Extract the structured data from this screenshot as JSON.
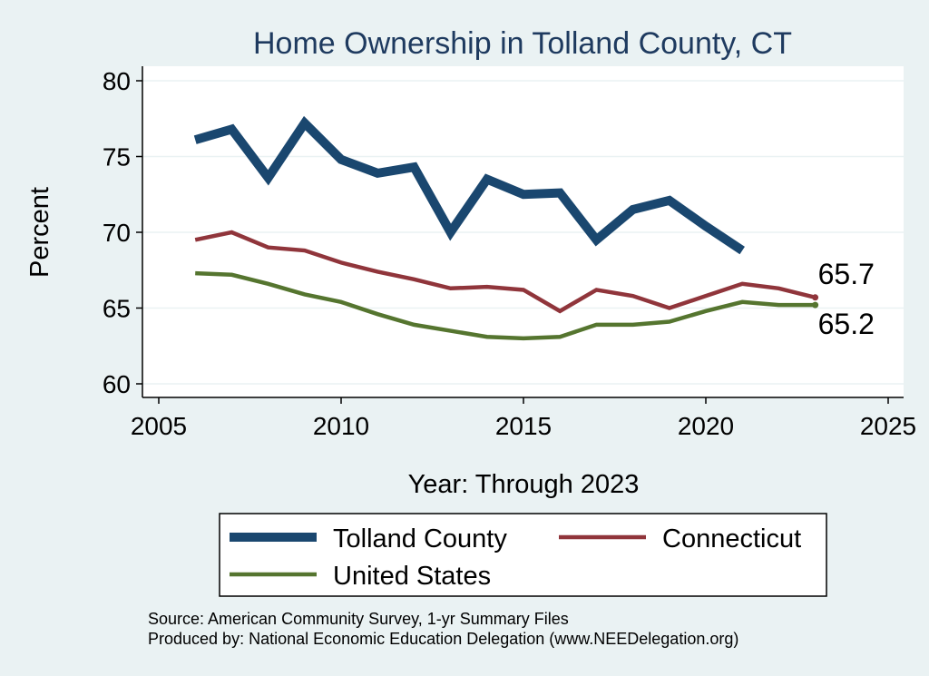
{
  "chart_data": {
    "type": "line",
    "title": "Home Ownership in Tolland County, CT",
    "xlabel": "Year: Through 2023",
    "ylabel": "Percent",
    "xlim": [
      2005,
      2025
    ],
    "ylim": [
      60,
      80
    ],
    "xticks": [
      2005,
      2010,
      2015,
      2020,
      2025
    ],
    "yticks": [
      60,
      65,
      70,
      75,
      80
    ],
    "series": [
      {
        "name": "Tolland County",
        "color": "#1a476f",
        "x": [
          2006,
          2007,
          2008,
          2009,
          2010,
          2011,
          2012,
          2013,
          2014,
          2015,
          2016,
          2017,
          2018,
          2019,
          2020,
          2021
        ],
        "values": [
          76.1,
          76.8,
          73.6,
          77.2,
          74.8,
          73.9,
          74.3,
          70.0,
          73.5,
          72.5,
          72.6,
          69.5,
          71.5,
          72.1,
          70.4,
          68.8
        ]
      },
      {
        "name": "Connecticut",
        "color": "#90353b",
        "x": [
          2006,
          2007,
          2008,
          2009,
          2010,
          2011,
          2012,
          2013,
          2014,
          2015,
          2016,
          2017,
          2018,
          2019,
          2020,
          2021,
          2022,
          2023
        ],
        "values": [
          69.5,
          70.0,
          69.0,
          68.8,
          68.0,
          67.4,
          66.9,
          66.3,
          66.4,
          66.2,
          64.8,
          66.2,
          65.8,
          65.0,
          65.8,
          66.6,
          66.3,
          65.7
        ]
      },
      {
        "name": "United States",
        "color": "#55752f",
        "x": [
          2006,
          2007,
          2008,
          2009,
          2010,
          2011,
          2012,
          2013,
          2014,
          2015,
          2016,
          2017,
          2018,
          2019,
          2020,
          2021,
          2022,
          2023
        ],
        "values": [
          67.3,
          67.2,
          66.6,
          65.9,
          65.4,
          64.6,
          63.9,
          63.5,
          63.1,
          63.0,
          63.1,
          63.9,
          63.9,
          64.1,
          64.8,
          65.4,
          65.2,
          65.2
        ]
      }
    ],
    "end_labels": [
      {
        "series": "Connecticut",
        "text": "65.7"
      },
      {
        "series": "United States",
        "text": "65.2"
      }
    ],
    "legend": {
      "position": "bottom",
      "items": [
        "Tolland County",
        "Connecticut",
        "United States"
      ]
    },
    "grid": true
  },
  "footer": {
    "source": "Source: American Community Survey, 1-yr Summary Files",
    "produced_by": "Produced by: National Economic Education Delegation (www.NEEDelegation.org)"
  }
}
